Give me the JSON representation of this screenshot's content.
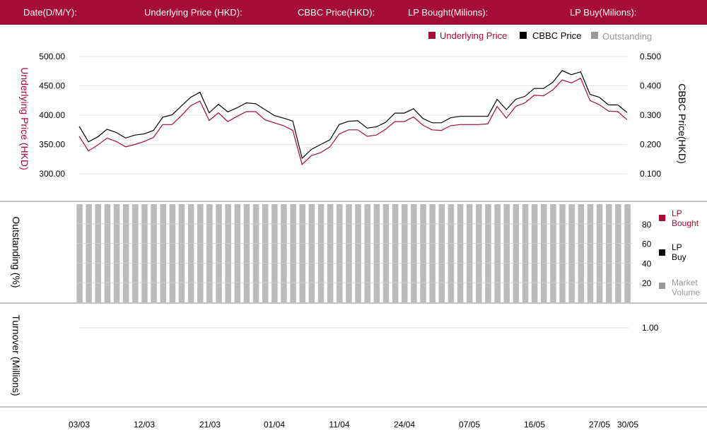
{
  "header": {
    "date_label": "Date(D/M/Y):",
    "underlying_label": "Underlying Price (HKD):",
    "cbbc_label": "CBBC Price(HKD):",
    "lp_bought_label": "LP Bought(Milions):",
    "lp_buy_label": "LP Buy(Milions):"
  },
  "colors": {
    "header_bg": "#a50d36",
    "underlying": "#a50d36",
    "cbbc": "#000000",
    "outstanding": "#bbbbbb"
  },
  "chart_data": [
    {
      "type": "line",
      "legend": [
        "Underlying Price",
        "CBBC Price",
        "Outstanding"
      ],
      "legend_position": "top-right",
      "ylabel": "Underlying Price (HKD)",
      "ylabel_right": "CBBC Price(HKD)",
      "yticks": [
        "300.00",
        "350.00",
        "400.00",
        "450.00",
        "500.00"
      ],
      "yticks_right": [
        "0.100",
        "0.200",
        "0.300",
        "0.400",
        "0.500"
      ],
      "ylim": [
        300,
        500
      ],
      "ylim_right": [
        0.1,
        0.5
      ],
      "grid": true,
      "series": [
        {
          "name": "Underlying Price",
          "axis": "left",
          "values": [
            364,
            339,
            349,
            361,
            355,
            346,
            350,
            355,
            362,
            384,
            384,
            399,
            416,
            424,
            391,
            404,
            389,
            398,
            406,
            406,
            392,
            387,
            382,
            374,
            316,
            331,
            336,
            346,
            368,
            375,
            375,
            364,
            366,
            376,
            389,
            389,
            397,
            383,
            375,
            374,
            382,
            384,
            384,
            384,
            385,
            415,
            395,
            415,
            421,
            434,
            433,
            443,
            460,
            455,
            463,
            425,
            418,
            407,
            406,
            392
          ]
        },
        {
          "name": "CBBC Price",
          "axis": "right",
          "values": [
            0.262,
            0.209,
            0.226,
            0.252,
            0.241,
            0.222,
            0.232,
            0.236,
            0.248,
            0.293,
            0.301,
            0.331,
            0.361,
            0.378,
            0.308,
            0.337,
            0.311,
            0.325,
            0.342,
            0.339,
            0.319,
            0.299,
            0.29,
            0.28,
            0.153,
            0.183,
            0.2,
            0.216,
            0.268,
            0.279,
            0.281,
            0.256,
            0.26,
            0.276,
            0.307,
            0.307,
            0.322,
            0.289,
            0.274,
            0.274,
            0.291,
            0.296,
            0.296,
            0.296,
            0.296,
            0.354,
            0.319,
            0.354,
            0.364,
            0.391,
            0.391,
            0.412,
            0.452,
            0.438,
            0.448,
            0.371,
            0.361,
            0.335,
            0.335,
            0.309
          ]
        }
      ]
    },
    {
      "type": "bar",
      "ylabel": "Outstanding (%)",
      "yticks": [
        "20",
        "40",
        "60",
        "80"
      ],
      "ylim": [
        0,
        100
      ],
      "legend": [
        "LP Bought",
        "LP Buy",
        "Market Volume"
      ],
      "legend_position": "right",
      "series": [
        {
          "name": "Outstanding",
          "values": [
            100,
            100,
            100,
            100,
            100,
            100,
            100,
            100,
            100,
            100,
            100,
            100,
            100,
            100,
            100,
            100,
            100,
            100,
            100,
            100,
            100,
            100,
            100,
            100,
            100,
            100,
            100,
            100,
            100,
            100,
            100,
            100,
            100,
            100,
            100,
            100,
            100,
            100,
            100,
            100,
            100,
            100,
            100,
            100,
            100,
            100,
            100,
            100,
            100,
            100,
            100,
            100,
            100,
            100,
            100,
            100,
            100,
            100,
            100,
            100
          ]
        }
      ]
    },
    {
      "type": "bar",
      "ylabel": "Turnover (Millions)",
      "yticks": [
        "1.00"
      ],
      "series": []
    }
  ],
  "xaxis_ticks": [
    "03/03",
    "12/03",
    "21/03",
    "01/04",
    "11/04",
    "24/04",
    "07/05",
    "16/05",
    "27/05",
    "30/05"
  ]
}
